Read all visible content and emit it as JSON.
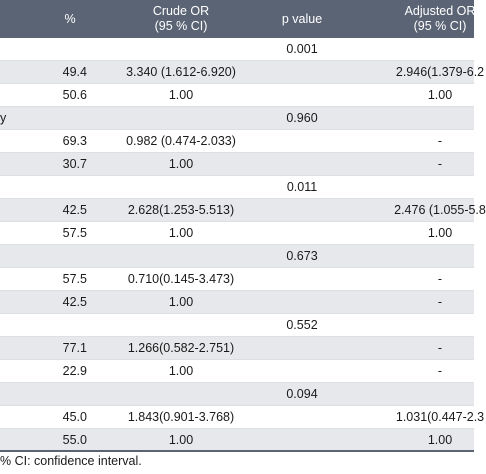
{
  "header": {
    "pct": "%",
    "crude_line1": "Crude OR",
    "crude_line2": "(95 % CI)",
    "pvalue": "p value",
    "adj_line1": "Adjusted OR",
    "adj_line2": "(95 % CI)"
  },
  "rows": [
    {
      "label": "",
      "pct": "",
      "crude": "",
      "p": "0.001",
      "adj": ""
    },
    {
      "label": "",
      "pct": "49.4",
      "crude": "3.340 (1.612-6.920)",
      "p": "",
      "adj": "2.946(1.379-6.2"
    },
    {
      "label": "",
      "pct": "50.6",
      "crude": "1.00",
      "p": "",
      "adj": "1.00"
    },
    {
      "label": "y",
      "pct": "",
      "crude": "",
      "p": "0.960",
      "adj": ""
    },
    {
      "label": "",
      "pct": "69.3",
      "crude": "0.982 (0.474-2.033)",
      "p": "",
      "adj": "-"
    },
    {
      "label": "",
      "pct": "30.7",
      "crude": "1.00",
      "p": "",
      "adj": "-"
    },
    {
      "label": "",
      "pct": "",
      "crude": "",
      "p": "0.011",
      "adj": ""
    },
    {
      "label": "",
      "pct": "42.5",
      "crude": "2.628(1.253-5.513)",
      "p": "",
      "adj": "2.476 (1.055-5.8"
    },
    {
      "label": "",
      "pct": "57.5",
      "crude": "1.00",
      "p": "",
      "adj": "1.00"
    },
    {
      "label": "",
      "pct": "",
      "crude": "",
      "p": "0.673",
      "adj": ""
    },
    {
      "label": "",
      "pct": "57.5",
      "crude": "0.710(0.145-3.473)",
      "p": "",
      "adj": "-"
    },
    {
      "label": "",
      "pct": "42.5",
      "crude": "1.00",
      "p": "",
      "adj": "-"
    },
    {
      "label": "",
      "pct": "",
      "crude": "",
      "p": "0.552",
      "adj": ""
    },
    {
      "label": "",
      "pct": "77.1",
      "crude": "1.266(0.582-2.751)",
      "p": "",
      "adj": "-"
    },
    {
      "label": "",
      "pct": "22.9",
      "crude": "1.00",
      "p": "",
      "adj": "-"
    },
    {
      "label": "",
      "pct": "",
      "crude": "",
      "p": "0.094",
      "adj": ""
    },
    {
      "label": "",
      "pct": "45.0",
      "crude": "1.843(0.901-3.768)",
      "p": "",
      "adj": "1.031(0.447-2.3"
    },
    {
      "label": "",
      "pct": "55.0",
      "crude": "1.00",
      "p": "",
      "adj": "1.00"
    }
  ],
  "footnote": "% CI: confidence interval."
}
